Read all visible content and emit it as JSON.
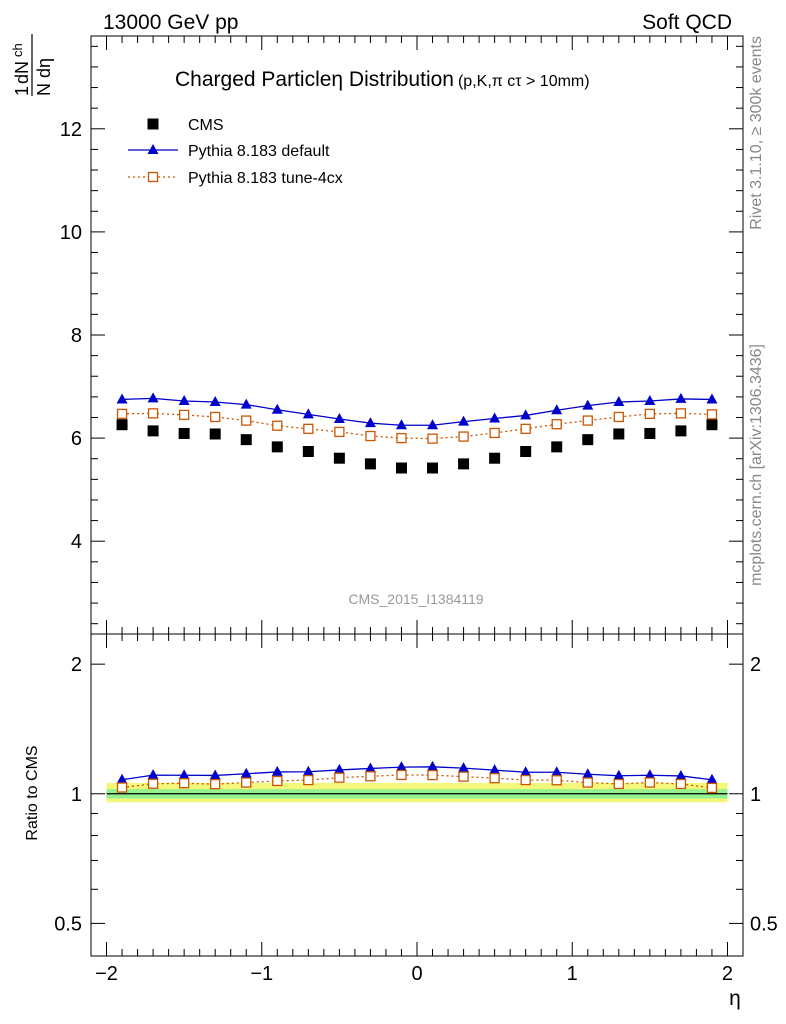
{
  "header": {
    "energy": "13000 GeV pp",
    "category": "Soft QCD"
  },
  "side_labels": {
    "rivet": "Rivet 3.1.10, ≥ 300k events",
    "mcplots": "mcplots.cern.ch [arXiv:1306.3436]"
  },
  "chart_data": [
    {
      "type": "scatter",
      "panel": "main",
      "title": "Charged Particleη Distribution",
      "title_note": "(p,K,π cτ > 10mm)",
      "watermark": "CMS_2015_I1384119",
      "ylabel_num": "1",
      "ylabel_dn": "dN",
      "ylabel_sub": "ch",
      "ylabel_den": "N dη",
      "xlim": [
        -2.1,
        2.1
      ],
      "ylim": [
        2.2,
        13.8
      ],
      "y_ticks": [
        4,
        6,
        8,
        10,
        12
      ],
      "y_tick_labels": [
        "4",
        "6",
        "8",
        "10",
        "12"
      ],
      "x": [
        -1.9,
        -1.7,
        -1.5,
        -1.3,
        -1.1,
        -0.9,
        -0.7,
        -0.5,
        -0.3,
        -0.1,
        0.1,
        0.3,
        0.5,
        0.7,
        0.9,
        1.1,
        1.3,
        1.5,
        1.7,
        1.9
      ],
      "legend": [
        "CMS",
        "Pythia 8.183 default",
        "Pythia 8.183 tune-4cx"
      ],
      "series": [
        {
          "name": "CMS",
          "color": "#000000",
          "marker": "filled-square",
          "values": [
            6.26,
            6.14,
            6.09,
            6.08,
            5.97,
            5.83,
            5.74,
            5.61,
            5.5,
            5.42,
            5.42,
            5.5,
            5.61,
            5.74,
            5.83,
            5.97,
            6.08,
            6.09,
            6.14,
            6.26
          ]
        },
        {
          "name": "Pythia 8.183 default",
          "color": "#0000cc",
          "marker": "filled-triangle",
          "values": [
            6.75,
            6.77,
            6.72,
            6.7,
            6.65,
            6.55,
            6.46,
            6.37,
            6.29,
            6.25,
            6.25,
            6.32,
            6.38,
            6.44,
            6.54,
            6.63,
            6.7,
            6.72,
            6.76,
            6.75
          ]
        },
        {
          "name": "Pythia 8.183 tune-4cx",
          "color": "#cc5500",
          "marker": "open-square",
          "values": [
            6.47,
            6.48,
            6.45,
            6.41,
            6.34,
            6.24,
            6.18,
            6.12,
            6.04,
            6.0,
            5.99,
            6.03,
            6.1,
            6.18,
            6.27,
            6.34,
            6.41,
            6.47,
            6.48,
            6.46
          ]
        }
      ]
    },
    {
      "type": "line",
      "panel": "ratio",
      "ylabel": "Ratio to CMS",
      "xlabel": "η",
      "xlim": [
        -2.1,
        2.1
      ],
      "ylim": [
        0.42,
        2.35
      ],
      "x_ticks": [
        -2,
        -1,
        0,
        1,
        2
      ],
      "x_tick_labels": [
        "−2",
        "−1",
        "0",
        "1",
        "2"
      ],
      "y_ticks": [
        0.5,
        1,
        2
      ],
      "y_tick_labels": [
        "0.5",
        "1",
        "2"
      ],
      "x": [
        -1.9,
        -1.7,
        -1.5,
        -1.3,
        -1.1,
        -0.9,
        -0.7,
        -0.5,
        -0.3,
        -0.1,
        0.1,
        0.3,
        0.5,
        0.7,
        0.9,
        1.1,
        1.3,
        1.5,
        1.7,
        1.9
      ],
      "band_edges": [
        -2.0,
        2.0
      ],
      "uncertainty_band_inner": [
        0.975,
        1.025
      ],
      "uncertainty_band_outer": [
        0.955,
        1.06
      ],
      "series": [
        {
          "name": "Pythia 8.183 default",
          "color": "#0000cc",
          "marker": "filled-triangle",
          "values": [
            1.078,
            1.105,
            1.104,
            1.103,
            1.113,
            1.124,
            1.125,
            1.136,
            1.145,
            1.153,
            1.155,
            1.147,
            1.135,
            1.122,
            1.122,
            1.11,
            1.101,
            1.104,
            1.1,
            1.078
          ]
        },
        {
          "name": "Pythia 8.183 tune-4cx",
          "color": "#cc5500",
          "marker": "open-square",
          "values": [
            1.034,
            1.055,
            1.058,
            1.053,
            1.062,
            1.071,
            1.076,
            1.09,
            1.098,
            1.106,
            1.105,
            1.096,
            1.087,
            1.076,
            1.075,
            1.062,
            1.054,
            1.062,
            1.054,
            1.032
          ]
        }
      ]
    }
  ]
}
